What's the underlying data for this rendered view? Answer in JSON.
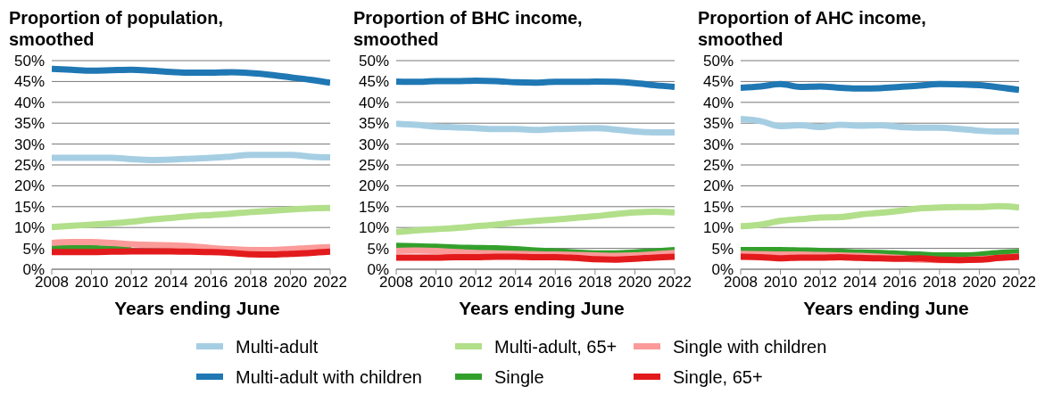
{
  "chart_data": [
    {
      "type": "line",
      "title": "Proportion of population, smoothed",
      "xlabel": "Years ending June",
      "x": [
        2008,
        2009,
        2010,
        2011,
        2012,
        2013,
        2014,
        2015,
        2016,
        2017,
        2018,
        2019,
        2020,
        2021,
        2022
      ],
      "xlim": [
        2008,
        2022
      ],
      "xticks": [
        2008,
        2010,
        2012,
        2014,
        2016,
        2018,
        2020,
        2022
      ],
      "ylim": [
        0,
        50
      ],
      "yticks": [
        {
          "value": 0,
          "label": "0%"
        },
        {
          "value": 5,
          "label": "5%"
        },
        {
          "value": 10,
          "label": "10%"
        },
        {
          "value": 15,
          "label": "15%"
        },
        {
          "value": 20,
          "label": "20%"
        },
        {
          "value": 25,
          "label": "25%"
        },
        {
          "value": 30,
          "label": "30%"
        },
        {
          "value": 35,
          "label": "35%"
        },
        {
          "value": 40,
          "label": "40%"
        },
        {
          "value": 45,
          "label": "45%"
        },
        {
          "value": 50,
          "label": "50%"
        }
      ],
      "grid": "y",
      "legend": "bottom",
      "series": [
        {
          "name": "Multi-adult",
          "color": "#a6cee3",
          "values": [
            26.7,
            26.7,
            26.7,
            26.7,
            26.4,
            26.2,
            26.3,
            26.5,
            26.7,
            27.0,
            27.4,
            27.4,
            27.4,
            27.0,
            26.8
          ]
        },
        {
          "name": "Multi-adult with children",
          "color": "#1f78b4",
          "values": [
            48.0,
            47.8,
            47.6,
            47.7,
            47.8,
            47.6,
            47.3,
            47.1,
            47.1,
            47.2,
            47.0,
            46.6,
            46.0,
            45.4,
            44.7
          ]
        },
        {
          "name": "Multi-adult, 65+",
          "color": "#b2df8a",
          "values": [
            10.1,
            10.4,
            10.7,
            11.0,
            11.4,
            11.9,
            12.3,
            12.7,
            13.0,
            13.3,
            13.7,
            14.0,
            14.3,
            14.6,
            14.7
          ]
        },
        {
          "name": "Single",
          "color": "#33a02c",
          "values": [
            5.1,
            5.2,
            5.1,
            4.9,
            4.7,
            null,
            null,
            null,
            null,
            null,
            null,
            null,
            null,
            null,
            null
          ]
        },
        {
          "name": "Single with children",
          "color": "#fb9a99",
          "values": [
            6.3,
            6.5,
            6.5,
            6.3,
            6.0,
            5.8,
            5.7,
            5.5,
            5.1,
            4.8,
            4.6,
            4.6,
            4.8,
            5.1,
            5.3
          ]
        },
        {
          "name": "Single, 65+",
          "color": "#e31a1c",
          "values": [
            4.1,
            4.1,
            4.1,
            4.2,
            4.3,
            4.3,
            4.3,
            4.2,
            4.1,
            3.9,
            3.6,
            3.5,
            3.7,
            3.9,
            4.2
          ]
        }
      ]
    },
    {
      "type": "line",
      "title": "Proportion of BHC income, smoothed",
      "xlabel": "Years ending June",
      "x": [
        2008,
        2009,
        2010,
        2011,
        2012,
        2013,
        2014,
        2015,
        2016,
        2017,
        2018,
        2019,
        2020,
        2021,
        2022
      ],
      "xlim": [
        2008,
        2022
      ],
      "xticks": [
        2008,
        2010,
        2012,
        2014,
        2016,
        2018,
        2020,
        2022
      ],
      "ylim": [
        0,
        50
      ],
      "yticks": [
        {
          "value": 0,
          "label": "0%"
        },
        {
          "value": 5,
          "label": "5%"
        },
        {
          "value": 10,
          "label": "10%"
        },
        {
          "value": 15,
          "label": "15%"
        },
        {
          "value": 20,
          "label": "20%"
        },
        {
          "value": 25,
          "label": "25%"
        },
        {
          "value": 30,
          "label": "30%"
        },
        {
          "value": 35,
          "label": "35%"
        },
        {
          "value": 40,
          "label": "40%"
        },
        {
          "value": 45,
          "label": "45%"
        },
        {
          "value": 50,
          "label": "50%"
        }
      ],
      "grid": "y",
      "series": [
        {
          "color": "#a6cee3",
          "values": [
            34.9,
            34.6,
            34.2,
            34.0,
            33.8,
            33.6,
            33.6,
            33.4,
            33.6,
            33.7,
            33.8,
            33.5,
            33.0,
            32.8,
            32.8
          ]
        },
        {
          "color": "#1f78b4",
          "values": [
            45.0,
            44.9,
            45.1,
            45.1,
            45.2,
            45.1,
            44.8,
            44.7,
            44.9,
            44.9,
            45.0,
            44.9,
            44.6,
            44.1,
            43.7
          ]
        },
        {
          "color": "#b2df8a",
          "values": [
            8.9,
            9.3,
            9.6,
            9.9,
            10.3,
            10.7,
            11.2,
            11.6,
            11.9,
            12.3,
            12.7,
            13.2,
            13.6,
            13.8,
            13.6
          ]
        },
        {
          "color": "#33a02c",
          "values": [
            5.6,
            5.5,
            5.4,
            5.2,
            5.1,
            5.0,
            4.8,
            4.5,
            4.3,
            4.0,
            3.8,
            3.8,
            4.0,
            4.3,
            4.6
          ]
        },
        {
          "color": "#fb9a99",
          "values": [
            4.4,
            4.5,
            4.4,
            4.1,
            3.9,
            3.8,
            3.7,
            3.6,
            3.5,
            3.4,
            3.3,
            3.2,
            3.3,
            3.6,
            3.9
          ]
        },
        {
          "color": "#e31a1c",
          "values": [
            2.8,
            2.8,
            2.8,
            2.9,
            2.9,
            3.0,
            3.0,
            2.9,
            2.9,
            2.7,
            2.4,
            2.3,
            2.5,
            2.8,
            3.0
          ]
        }
      ]
    },
    {
      "type": "line",
      "title": "Proportion of AHC income, smoothed",
      "xlabel": "Years ending June",
      "x": [
        2008,
        2009,
        2010,
        2011,
        2012,
        2013,
        2014,
        2015,
        2016,
        2017,
        2018,
        2019,
        2020,
        2021,
        2022
      ],
      "xlim": [
        2008,
        2022
      ],
      "xticks": [
        2008,
        2010,
        2012,
        2014,
        2016,
        2018,
        2020,
        2022
      ],
      "ylim": [
        0,
        50
      ],
      "yticks": [
        {
          "value": 0,
          "label": "0%"
        },
        {
          "value": 5,
          "label": "5%"
        },
        {
          "value": 10,
          "label": "10%"
        },
        {
          "value": 15,
          "label": "15%"
        },
        {
          "value": 20,
          "label": "20%"
        },
        {
          "value": 25,
          "label": "25%"
        },
        {
          "value": 30,
          "label": "30%"
        },
        {
          "value": 35,
          "label": "35%"
        },
        {
          "value": 40,
          "label": "40%"
        },
        {
          "value": 45,
          "label": "45%"
        },
        {
          "value": 50,
          "label": "50%"
        }
      ],
      "grid": "y",
      "series": [
        {
          "color": "#a6cee3",
          "values": [
            36.0,
            35.5,
            34.3,
            34.5,
            34.1,
            34.6,
            34.4,
            34.5,
            34.1,
            33.9,
            33.9,
            33.6,
            33.2,
            33.0,
            33.0
          ]
        },
        {
          "color": "#1f78b4",
          "values": [
            43.5,
            43.8,
            44.4,
            43.7,
            43.8,
            43.5,
            43.3,
            43.4,
            43.7,
            44.0,
            44.4,
            44.3,
            44.1,
            43.6,
            43.0
          ]
        },
        {
          "color": "#b2df8a",
          "values": [
            10.3,
            10.7,
            11.6,
            12.0,
            12.4,
            12.5,
            13.1,
            13.5,
            14.0,
            14.6,
            14.8,
            14.9,
            14.9,
            15.1,
            14.8
          ]
        },
        {
          "color": "#33a02c",
          "values": [
            4.6,
            4.6,
            4.6,
            4.5,
            4.4,
            4.2,
            4.0,
            3.9,
            3.7,
            3.5,
            3.3,
            3.3,
            3.5,
            3.9,
            4.1
          ]
        },
        {
          "color": "#fb9a99",
          "values": [
            3.7,
            3.6,
            3.5,
            3.5,
            3.4,
            3.3,
            3.2,
            3.0,
            2.7,
            2.3,
            2.2,
            2.2,
            2.4,
            2.7,
            3.1
          ]
        },
        {
          "color": "#e31a1c",
          "values": [
            3.0,
            2.9,
            2.6,
            2.8,
            2.8,
            2.9,
            2.7,
            2.6,
            2.5,
            2.6,
            2.3,
            2.2,
            2.3,
            2.7,
            3.0
          ]
        }
      ]
    }
  ]
}
